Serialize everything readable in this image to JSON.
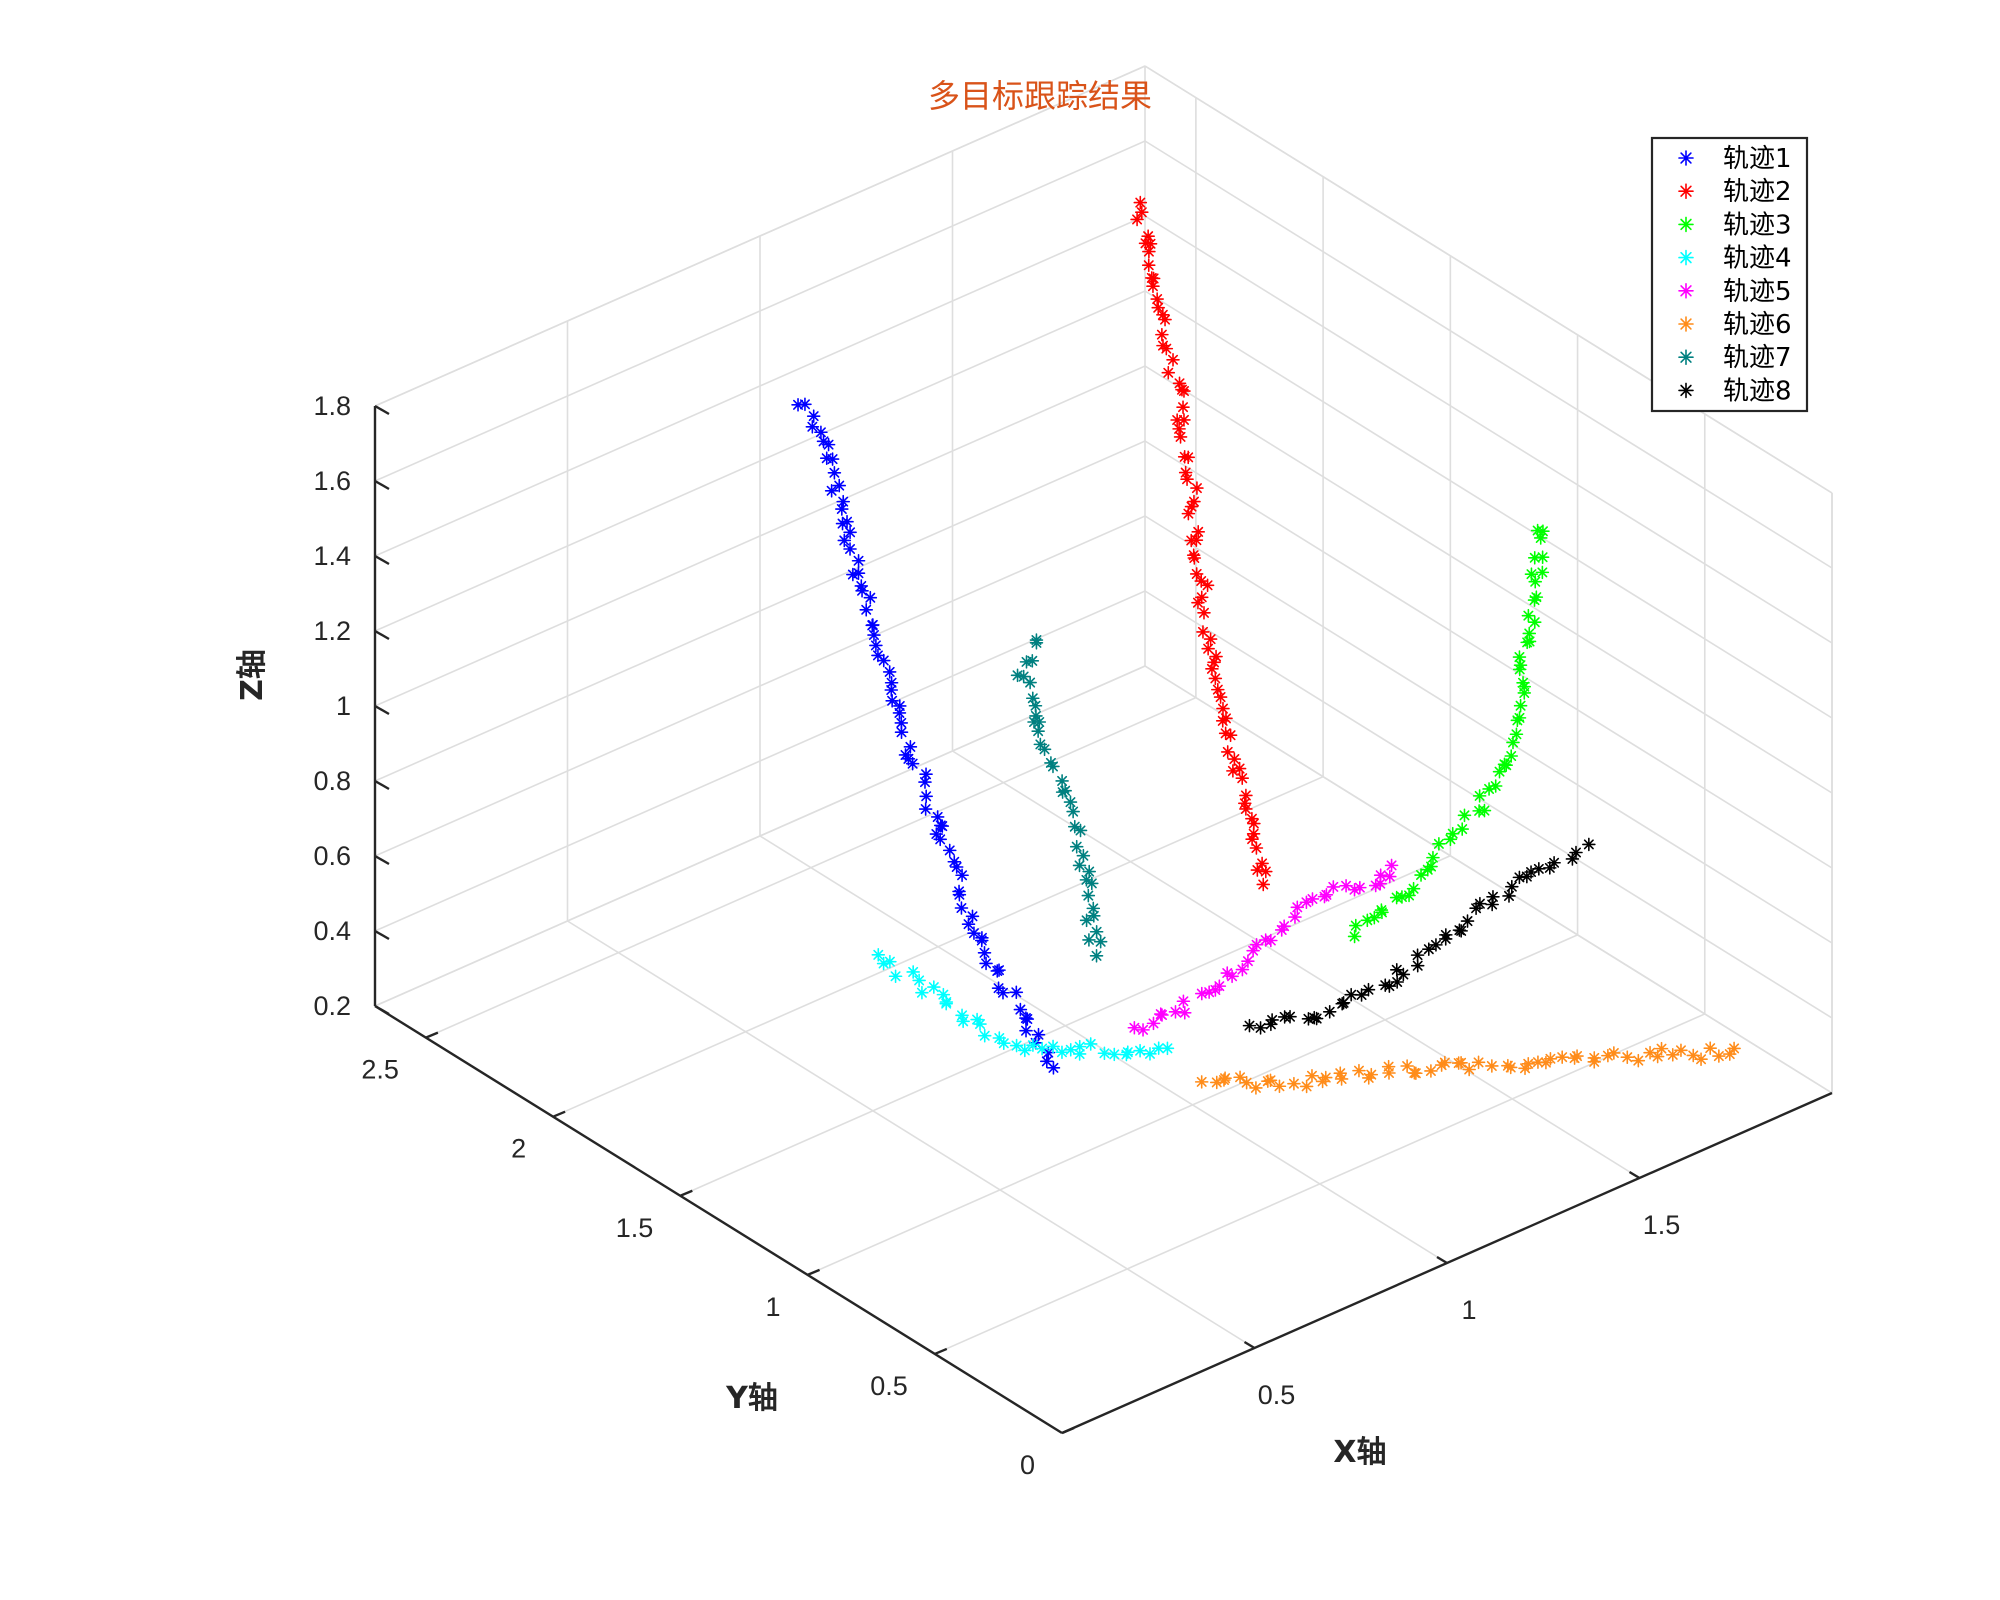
{
  "chart_data": {
    "type": "scatter3d",
    "title": "多目标跟踪结果",
    "title_color": "#D95319",
    "xlabel": "X轴",
    "ylabel": "Y轴",
    "zlabel": "Z轴",
    "xlim": [
      0,
      2
    ],
    "ylim": [
      0,
      2.7
    ],
    "zlim": [
      0.2,
      1.8
    ],
    "xticks": [
      "0.5",
      "1",
      "1.5"
    ],
    "yticks": [
      "0",
      "0.5",
      "1",
      "1.5",
      "2",
      "2.5"
    ],
    "zticks": [
      "0.2",
      "0.4",
      "0.6",
      "0.8",
      "1",
      "1.2",
      "1.4",
      "1.6",
      "1.8"
    ],
    "grid": true,
    "legend_position": "top-right",
    "series": [
      {
        "name": "轨迹1",
        "color": "#0000FF",
        "points": [
          [
            0.85,
            2.3,
            1.6
          ],
          [
            0.86,
            2.22,
            1.48
          ],
          [
            0.86,
            2.15,
            1.3
          ],
          [
            0.87,
            2.07,
            1.1
          ],
          [
            0.86,
            1.95,
            0.9
          ],
          [
            0.86,
            1.82,
            0.72
          ],
          [
            0.86,
            1.7,
            0.55
          ],
          [
            0.85,
            1.55,
            0.4
          ],
          [
            0.86,
            1.45,
            0.3
          ],
          [
            0.87,
            1.35,
            0.21
          ]
        ]
      },
      {
        "name": "轨迹2",
        "color": "#FF0000",
        "points": [
          [
            1.65,
            2.2,
            1.8
          ],
          [
            1.63,
            2.1,
            1.6
          ],
          [
            1.65,
            2.05,
            1.4
          ],
          [
            1.65,
            2.0,
            1.2
          ],
          [
            1.62,
            1.92,
            1.0
          ],
          [
            1.6,
            1.85,
            0.82
          ],
          [
            1.6,
            1.78,
            0.6
          ],
          [
            1.6,
            1.7,
            0.42
          ],
          [
            1.6,
            1.63,
            0.25
          ]
        ]
      },
      {
        "name": "轨迹3",
        "color": "#00FF00",
        "points": [
          [
            1.85,
            0.9,
            1.4
          ],
          [
            1.82,
            0.9,
            1.25
          ],
          [
            1.8,
            0.9,
            1.1
          ],
          [
            1.78,
            0.9,
            0.95
          ],
          [
            1.77,
            0.93,
            0.82
          ],
          [
            1.76,
            0.98,
            0.7
          ],
          [
            1.72,
            1.05,
            0.57
          ],
          [
            1.62,
            1.1,
            0.45
          ],
          [
            1.52,
            1.15,
            0.35
          ]
        ]
      },
      {
        "name": "轨迹4",
        "color": "#00FFFF",
        "points": [
          [
            0.75,
            1.85,
            0.35
          ],
          [
            0.8,
            1.7,
            0.28
          ],
          [
            0.85,
            1.55,
            0.22
          ],
          [
            0.9,
            1.45,
            0.2
          ],
          [
            1.0,
            1.35,
            0.2
          ],
          [
            1.05,
            1.28,
            0.2
          ],
          [
            1.1,
            1.25,
            0.2
          ]
        ]
      },
      {
        "name": "轨迹5",
        "color": "#FF00FF",
        "points": [
          [
            1.55,
            1.05,
            0.56
          ],
          [
            1.55,
            1.1,
            0.5
          ],
          [
            1.45,
            1.18,
            0.48
          ],
          [
            1.38,
            1.22,
            0.4
          ],
          [
            1.3,
            1.27,
            0.32
          ],
          [
            1.24,
            1.32,
            0.25
          ],
          [
            1.2,
            1.35,
            0.22
          ],
          [
            1.1,
            1.38,
            0.2
          ]
        ]
      },
      {
        "name": "轨迹6",
        "color": "#FF8C1A",
        "points": [
          [
            1.95,
            0.3,
            0.2
          ],
          [
            1.88,
            0.38,
            0.2
          ],
          [
            1.75,
            0.5,
            0.2
          ],
          [
            1.6,
            0.62,
            0.2
          ],
          [
            1.45,
            0.75,
            0.2
          ],
          [
            1.3,
            0.85,
            0.2
          ],
          [
            1.18,
            0.95,
            0.2
          ],
          [
            1.07,
            1.07,
            0.2
          ]
        ]
      },
      {
        "name": "轨迹7",
        "color": "#008080",
        "points": [
          [
            1.3,
            2.05,
            0.86
          ],
          [
            1.2,
            1.97,
            0.85
          ],
          [
            1.2,
            1.95,
            0.8
          ],
          [
            1.2,
            1.88,
            0.7
          ],
          [
            1.23,
            1.83,
            0.55
          ],
          [
            1.23,
            1.78,
            0.42
          ],
          [
            1.22,
            1.73,
            0.3
          ],
          [
            1.2,
            1.68,
            0.22
          ]
        ]
      },
      {
        "name": "轨迹8",
        "color": "#000000",
        "points": [
          [
            1.85,
            0.75,
            0.62
          ],
          [
            1.8,
            0.8,
            0.56
          ],
          [
            1.72,
            0.86,
            0.5
          ],
          [
            1.65,
            0.92,
            0.42
          ],
          [
            1.58,
            0.97,
            0.34
          ],
          [
            1.5,
            1.02,
            0.27
          ],
          [
            1.4,
            1.1,
            0.22
          ],
          [
            1.28,
            1.2,
            0.2
          ]
        ]
      }
    ]
  }
}
